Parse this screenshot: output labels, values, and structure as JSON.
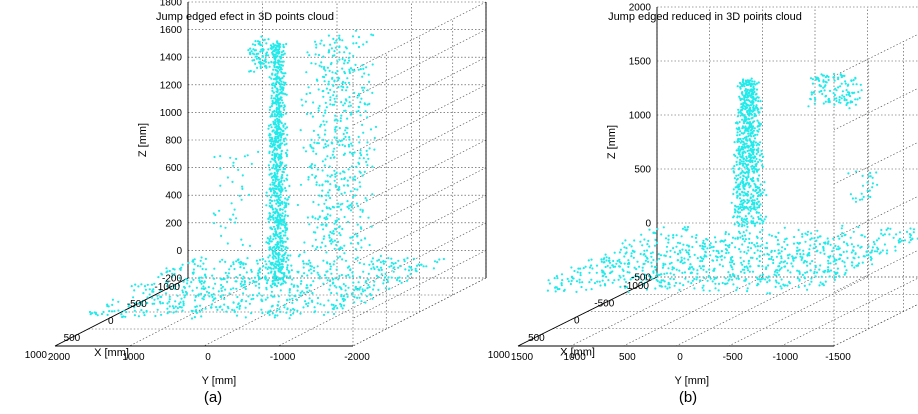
{
  "colors": {
    "points": "#22eaea",
    "grid": "#444444",
    "axis": "#000000"
  },
  "chart_data": [
    {
      "type": "scatter",
      "subtype": "3d-point-cloud",
      "panel_label": "(a)",
      "title": "Jump edged efect in 3D points cloud",
      "xlabel": "X [mm]",
      "ylabel": "Y [mm]",
      "zlabel": "Z [mm]",
      "xlim": [
        -1000,
        1000
      ],
      "ylim": [
        -2000,
        2000
      ],
      "zlim": [
        -200,
        1800
      ],
      "x_ticks": [
        "-1000",
        "-500",
        "0",
        "500",
        "1000"
      ],
      "y_ticks": [
        "2000",
        "1000",
        "0",
        "-1000",
        "-2000"
      ],
      "z_ticks": [
        "-200",
        "0",
        "200",
        "400",
        "600",
        "800",
        "1000",
        "1200",
        "1400",
        "1600",
        "1800"
      ],
      "grid": true,
      "series": [
        {
          "clusters": [
            {
              "x": [
                -100,
                100
              ],
              "y": [
                0,
                200
              ],
              "z": [
                0,
                1750
              ],
              "n": 900,
              "taper": "z-up"
            },
            {
              "x": [
                -50,
                400
              ],
              "y": [
                400,
                1100
              ],
              "z": [
                200,
                1750
              ],
              "n": 500,
              "taper": "none"
            },
            {
              "x": [
                -150,
                100
              ],
              "y": [
                -200,
                0
              ],
              "z": [
                1550,
                1780
              ],
              "n": 80,
              "taper": "none"
            },
            {
              "x": [
                -200,
                200
              ],
              "y": [
                -700,
                -300
              ],
              "z": [
                200,
                1000
              ],
              "n": 40,
              "taper": "none"
            },
            {
              "x": [
                -900,
                800
              ],
              "y": [
                -1800,
                1700
              ],
              "z": [
                -30,
                20
              ],
              "n": 700,
              "taper": "floor"
            }
          ]
        }
      ]
    },
    {
      "type": "scatter",
      "subtype": "3d-point-cloud",
      "panel_label": "(b)",
      "title": "Jump edged reduced in 3D points cloud",
      "xlabel": "X [mm]",
      "ylabel": "Y [mm]",
      "zlabel": "Z [mm]",
      "xlim": [
        -1000,
        1000
      ],
      "ylim": [
        -1500,
        1500
      ],
      "zlim": [
        -500,
        2000
      ],
      "x_ticks": [
        "-1000",
        "-500",
        "0",
        "500",
        "1000"
      ],
      "y_ticks": [
        "1500",
        "1000",
        "500",
        "0",
        "-500",
        "-1000",
        "-1500"
      ],
      "z_ticks": [
        "-500",
        "0",
        "500",
        "1000",
        "1500",
        "2000"
      ],
      "grid": true,
      "series": [
        {
          "clusters": [
            {
              "x": [
                -100,
                100
              ],
              "y": [
                -100,
                150
              ],
              "z": [
                300,
                1650
              ],
              "n": 700,
              "taper": "z-up"
            },
            {
              "x": [
                -100,
                100
              ],
              "y": [
                650,
                1050
              ],
              "z": [
                1400,
                1700
              ],
              "n": 120,
              "taper": "none"
            },
            {
              "x": [
                -50,
                150
              ],
              "y": [
                1000,
                1200
              ],
              "z": [
                500,
                800
              ],
              "n": 25,
              "taper": "none"
            },
            {
              "x": [
                -900,
                800
              ],
              "y": [
                -1400,
                1300
              ],
              "z": [
                -50,
                40
              ],
              "n": 900,
              "taper": "floor"
            }
          ]
        }
      ]
    }
  ]
}
